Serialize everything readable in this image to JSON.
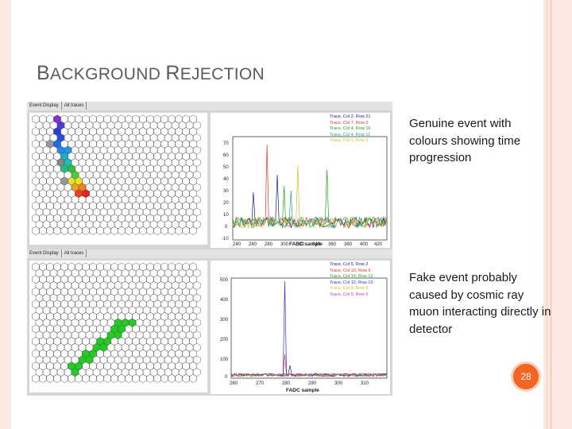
{
  "slide": {
    "title_first_1": "B",
    "title_rest_1": "ACKGROUND ",
    "title_first_2": "R",
    "title_rest_2": "EJECTION",
    "caption_top": "Genuine event with colours showing time progression",
    "caption_bottom": "Fake event probably caused by cosmic ray muon interacting directly in detector",
    "page_number": "28"
  },
  "figure_top": {
    "tabs": [
      "Event Display",
      "All traces"
    ],
    "legend": [
      {
        "text": "Trace, Col 2, Row 21",
        "color": "#1a1a80"
      },
      {
        "text": "Trace, Col 7, Row 2",
        "color": "#e03030"
      },
      {
        "text": "Trace, Col 4, Row 16",
        "color": "#20a020"
      },
      {
        "text": "Trace, Col 4, Row 11",
        "color": "#20a0a0"
      },
      {
        "text": "Trace, Col 6, Row 6",
        "color": "#d0c020"
      }
    ],
    "y_ticks": [
      "70",
      "60",
      "50",
      "40",
      "30",
      "20",
      "10",
      "0",
      "-10"
    ],
    "x_ticks": [
      "240",
      "260",
      "280",
      "300",
      "320",
      "340",
      "360",
      "380",
      "400",
      "420"
    ],
    "xlabel": "FADC sample"
  },
  "figure_bottom": {
    "tabs": [
      "Event Display",
      "All traces"
    ],
    "legend": [
      {
        "text": "Trace, Col 5, Row 2",
        "color": "#1a1a80"
      },
      {
        "text": "Trace, Col 10, Row 9",
        "color": "#e03030"
      },
      {
        "text": "Trace, Col 14, Row 12",
        "color": "#20a020"
      },
      {
        "text": "Trace, Col 12, Row 10",
        "color": "#3030d0"
      },
      {
        "text": "Trace, Col 8, Row 8",
        "color": "#d0c020"
      },
      {
        "text": "Trace, Col 6, Row 6",
        "color": "#c040c0"
      }
    ],
    "y_ticks": [
      "500",
      "400",
      "300",
      "200",
      "100",
      "0"
    ],
    "x_ticks": [
      "260",
      "270",
      "280",
      "290",
      "300",
      "310"
    ],
    "xlabel": "FADC sample"
  },
  "colors": {
    "accent": "#f26522",
    "title": "#5b5b5b",
    "frame": "#fbe9e2"
  }
}
